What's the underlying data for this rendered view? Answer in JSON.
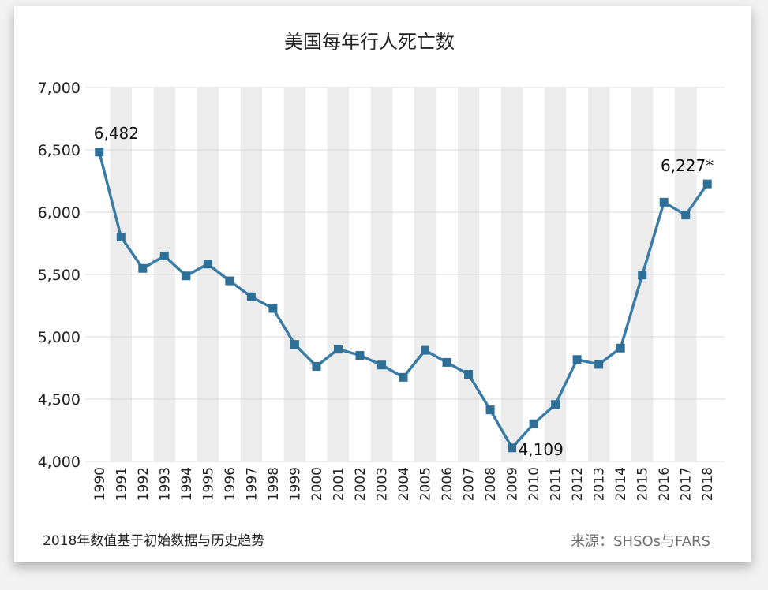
{
  "chart_data": {
    "type": "line",
    "title": "美国每年行人死亡数",
    "xlabel": "",
    "ylabel": "",
    "ylim": [
      4000,
      7000
    ],
    "yticks": [
      4000,
      4500,
      5000,
      5500,
      6000,
      6500,
      7000
    ],
    "ytick_labels": [
      "4,000",
      "4,500",
      "5,000",
      "5,500",
      "6,000",
      "6,500",
      "7,000"
    ],
    "x": [
      "1990",
      "1991",
      "1992",
      "1993",
      "1994",
      "1995",
      "1996",
      "1997",
      "1998",
      "1999",
      "2000",
      "2001",
      "2002",
      "2003",
      "2004",
      "2005",
      "2006",
      "2007",
      "2008",
      "2009",
      "2010",
      "2011",
      "2012",
      "2013",
      "2014",
      "2015",
      "2016",
      "2017",
      "2018"
    ],
    "series": [
      {
        "values": [
          6482,
          5801,
          5549,
          5649,
          5489,
          5584,
          5449,
          5321,
          5228,
          4939,
          4763,
          4901,
          4851,
          4774,
          4675,
          4892,
          4795,
          4699,
          4414,
          4109,
          4302,
          4457,
          4818,
          4779,
          4910,
          5495,
          6080,
          5977,
          6227
        ]
      }
    ],
    "annotations": [
      {
        "x": "1990",
        "text": "6,482"
      },
      {
        "x": "2009",
        "text": "4,109"
      },
      {
        "x": "2018",
        "text": "6,227*"
      }
    ],
    "grid": true,
    "alternating_column_shading": true,
    "line_color": "#3a7ca5",
    "marker_color": "#2e6f97",
    "shade_color": "#ececec"
  },
  "footnote": "2018年数值基于初始数据与历史趋势",
  "source": "来源：SHSOs与FARS"
}
